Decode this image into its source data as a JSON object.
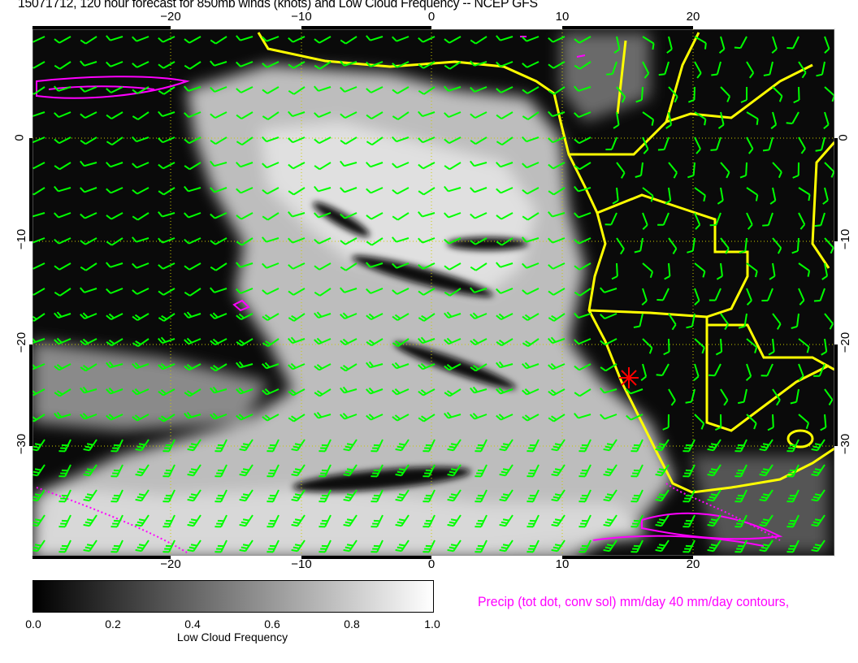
{
  "title": "15071712, 120 hour forecast for 850mb winds (knots) and Low Cloud Frequency -- NCEP GFS",
  "map": {
    "lon_ticks": [
      "−20",
      "−10",
      "0",
      "10",
      "20"
    ],
    "lat_ticks": [
      "0",
      "−10",
      "−20",
      "−30"
    ],
    "colors": {
      "coast": "#ffff00",
      "wind_barbs": "#00ff00",
      "precip": "#ff00ff",
      "marker": "#ff0000",
      "grid": "#cccc00"
    }
  },
  "colorbar": {
    "ticks": [
      "0.0",
      "0.2",
      "0.4",
      "0.6",
      "0.8",
      "1.0"
    ],
    "label": "Low Cloud Frequency"
  },
  "precip_legend": "Precip (tot dot, conv sol) mm/day 40 mm/day contours,"
}
